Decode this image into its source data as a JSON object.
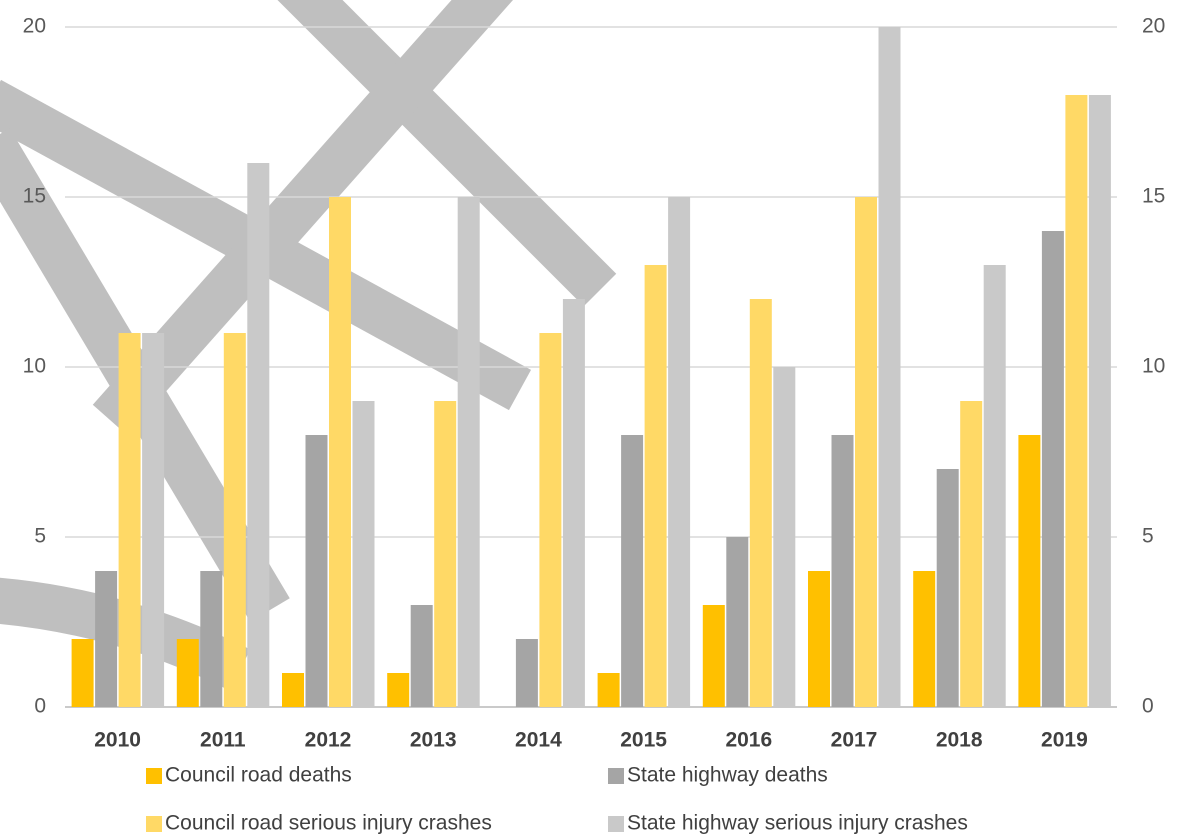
{
  "chart_data": {
    "type": "bar",
    "categories": [
      "2010",
      "2011",
      "2012",
      "2013",
      "2014",
      "2015",
      "2016",
      "2017",
      "2018",
      "2019"
    ],
    "series": [
      {
        "name": "Council road deaths",
        "color": "#ffc000",
        "values": [
          2,
          2,
          1,
          1,
          0,
          1,
          3,
          4,
          4,
          8
        ]
      },
      {
        "name": "State highway deaths",
        "color": "#a5a5a5",
        "values": [
          4,
          4,
          8,
          3,
          2,
          8,
          5,
          8,
          7,
          14
        ]
      },
      {
        "name": "Council road serious injury crashes",
        "color": "#ffd966",
        "values": [
          11,
          11,
          15,
          9,
          11,
          13,
          12,
          15,
          9,
          18
        ]
      },
      {
        "name": "State highway serious injury crashes",
        "color": "#c9c9c9",
        "values": [
          11,
          16,
          9,
          15,
          12,
          15,
          10,
          20,
          13,
          18
        ]
      }
    ],
    "ylim": [
      0,
      20
    ],
    "yticks": [
      0,
      5,
      10,
      15,
      20
    ],
    "y2lim": [
      0,
      20
    ],
    "y2ticks": [
      0,
      5,
      10,
      15,
      20
    ],
    "grid": true,
    "legend": "bottom"
  }
}
